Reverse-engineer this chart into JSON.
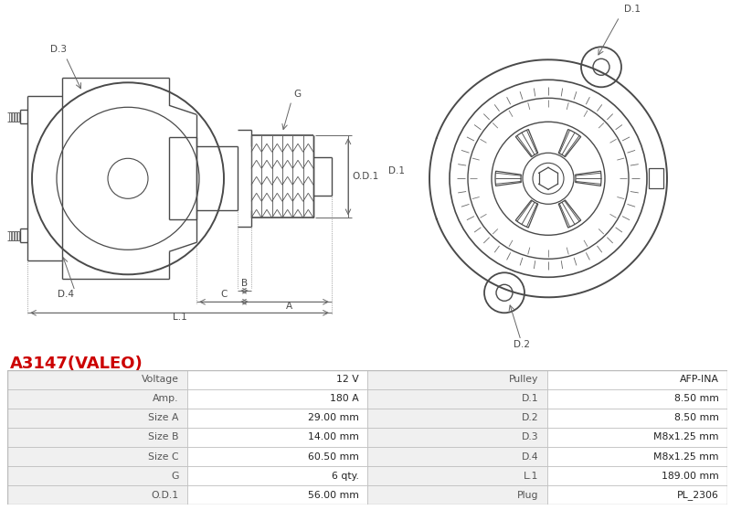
{
  "title": "A3147(VALEO)",
  "title_color": "#cc0000",
  "bg_color": "#ffffff",
  "table_row_bg1": "#f0f0f0",
  "table_row_bg2": "#ffffff",
  "table_border_color": "#bbbbbb",
  "line_color": "#4a4a4a",
  "dim_color": "#666666",
  "table_data": [
    [
      "Voltage",
      "12 V",
      "Pulley",
      "AFP-INA"
    ],
    [
      "Amp.",
      "180 A",
      "D.1",
      "8.50 mm"
    ],
    [
      "Size A",
      "29.00 mm",
      "D.2",
      "8.50 mm"
    ],
    [
      "Size B",
      "14.00 mm",
      "D.3",
      "M8x1.25 mm"
    ],
    [
      "Size C",
      "60.50 mm",
      "D.4",
      "M8x1.25 mm"
    ],
    [
      "G",
      "6 qty.",
      "L.1",
      "189.00 mm"
    ],
    [
      "O.D.1",
      "56.00 mm",
      "Plug",
      "PL_2306"
    ]
  ],
  "fig_width": 8.0,
  "fig_height": 5.58,
  "dpi": 100
}
